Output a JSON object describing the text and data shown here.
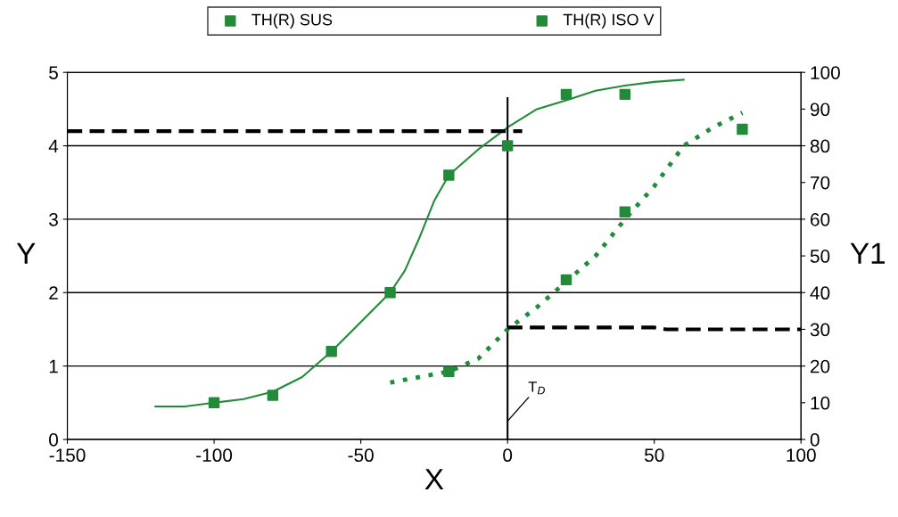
{
  "chart_data": {
    "type": "scatter",
    "xlabel": "X",
    "ylabel": "Y",
    "y2label": "Y1",
    "xlim": [
      -150,
      100
    ],
    "xticks": [
      -150,
      -100,
      -50,
      0,
      50,
      100
    ],
    "ylim": [
      0,
      5
    ],
    "yticks": [
      0,
      1,
      2,
      3,
      4,
      5
    ],
    "y2lim": [
      0,
      100
    ],
    "y2ticks": [
      0,
      10,
      20,
      30,
      40,
      50,
      60,
      70,
      80,
      90,
      100
    ],
    "grid": "y",
    "legend": "top",
    "annotations": [
      {
        "text": "T$_{D}$",
        "x": 0,
        "y": 0.25
      }
    ],
    "series": [
      {
        "name": "TH(R) SUS",
        "marker": "square",
        "color": "#228b3a",
        "x": [
          -100,
          -80,
          -60,
          -40,
          -20,
          0,
          20,
          40
        ],
        "values": [
          0.5,
          0.6,
          1.2,
          2.0,
          3.6,
          4.0,
          4.7,
          4.7
        ]
      },
      {
        "name": "TH(R) ISO V",
        "marker": "square",
        "axis": "y2",
        "color": "#228b3a",
        "x": [
          -20,
          20,
          40,
          80
        ],
        "values": [
          18.5,
          43.5,
          62,
          84.5
        ]
      },
      {
        "type": "line",
        "line_style": "solid",
        "color": "#228b3a",
        "x": [
          -120,
          -110,
          -100,
          -90,
          -80,
          -70,
          -60,
          -50,
          -40,
          -35,
          -30,
          -25,
          -20,
          -10,
          0,
          10,
          20,
          30,
          40,
          50,
          60
        ],
        "values": [
          0.45,
          0.45,
          0.5,
          0.55,
          0.65,
          0.85,
          1.2,
          1.6,
          2.0,
          2.3,
          2.75,
          3.25,
          3.6,
          3.95,
          4.25,
          4.5,
          4.62,
          4.75,
          4.82,
          4.87,
          4.9
        ]
      },
      {
        "type": "line",
        "line_style": "dotted",
        "axis": "y2",
        "color": "#228b3a",
        "x": [
          -40,
          -20,
          -10,
          0,
          10,
          20,
          30,
          40,
          50,
          60,
          70,
          80
        ],
        "values": [
          15.5,
          18.5,
          22,
          30,
          36,
          43,
          50,
          60,
          69,
          80,
          85,
          89
        ]
      },
      {
        "type": "line",
        "line_style": "dashed",
        "color": "#000000",
        "x": [
          -150,
          5
        ],
        "values": [
          4.2,
          4.2
        ]
      },
      {
        "type": "line",
        "line_style": "dashed",
        "axis": "y2",
        "color": "#000000",
        "x": [
          0,
          50,
          54,
          100
        ],
        "values": [
          30.5,
          30.5,
          30,
          30
        ]
      },
      {
        "type": "line",
        "line_style": "solid",
        "color": "#000000",
        "x": [
          0,
          0
        ],
        "values": [
          0,
          4.65
        ]
      }
    ]
  }
}
